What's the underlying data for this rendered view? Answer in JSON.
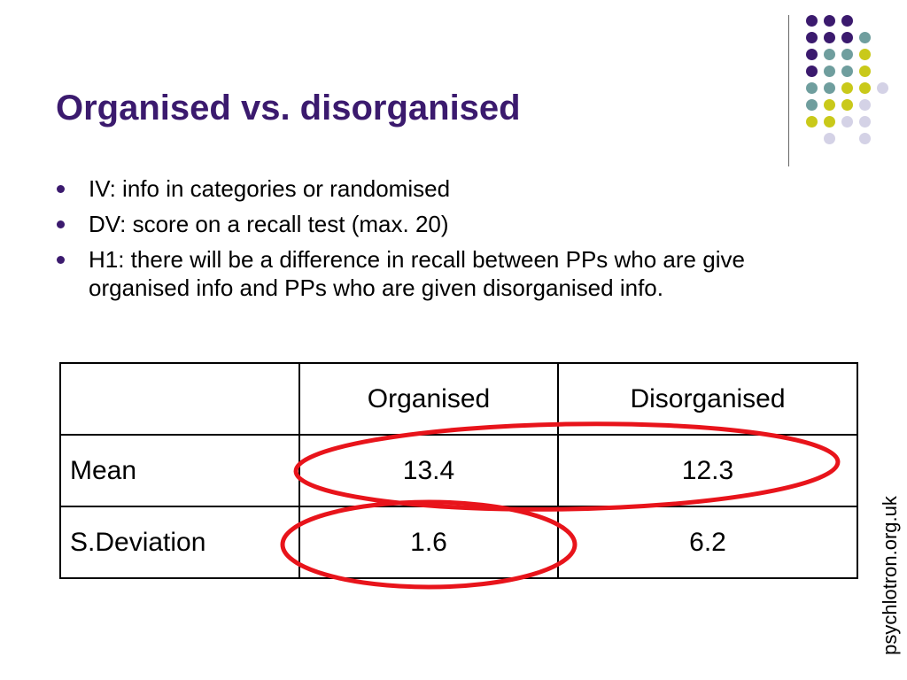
{
  "slide": {
    "title": "Organised vs. disorganised",
    "bullets": [
      "IV: info in categories or randomised",
      "DV: score on a recall test (max. 20)",
      "H1: there will be a difference in recall between PPs who are give organised info and PPs who are given disorganised info."
    ],
    "table": {
      "headers": [
        "",
        "Organised",
        "Disorganised"
      ],
      "rows": [
        {
          "label": "Mean",
          "organised": "13.4",
          "disorganised": "12.3"
        },
        {
          "label": "S.Deviation",
          "organised": "1.6",
          "disorganised": "6.2"
        }
      ]
    },
    "watermark": "psychlotron.org.uk"
  },
  "colors": {
    "title": "#3b1a6e",
    "bullet": "#3b1a6e",
    "highlight_ellipse": "#e8141b",
    "dot_purple": "#3b1a6e",
    "dot_teal": "#6f9e9e",
    "dot_yellow": "#c9c91a",
    "dot_lavender": "#d4d2e6"
  }
}
